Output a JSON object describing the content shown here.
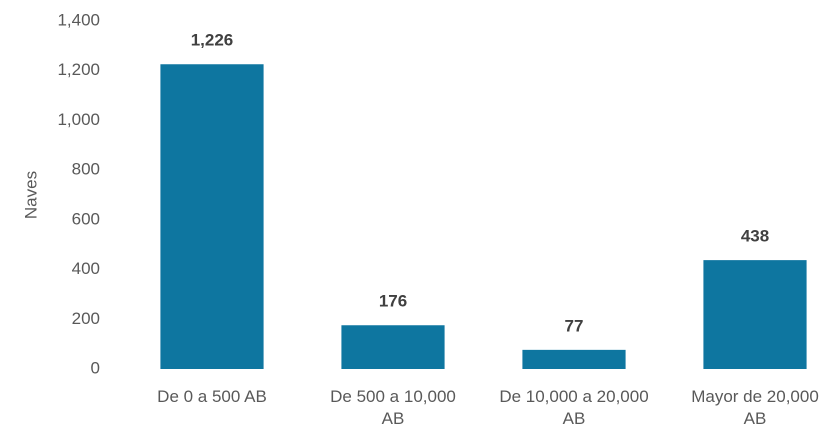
{
  "chart_data": {
    "type": "bar",
    "y_label": "Naves",
    "categories": [
      "De 0 a 500 AB",
      "De 500 a 10,000 AB",
      "De 10,000 a 20,000 AB",
      "Mayor de 20,000 AB"
    ],
    "values": [
      1226,
      176,
      77,
      438
    ],
    "value_labels": [
      "1,226",
      "176",
      "77",
      "438"
    ],
    "color": "#0e76a0",
    "ylim": [
      0,
      1400
    ],
    "yticks": [
      0,
      200,
      400,
      600,
      800,
      {
        "value": 1000,
        "label": "1,000"
      },
      {
        "value": 1200,
        "label": "1,200"
      },
      {
        "value": 1400,
        "label": "1,400"
      }
    ],
    "grid": false
  }
}
